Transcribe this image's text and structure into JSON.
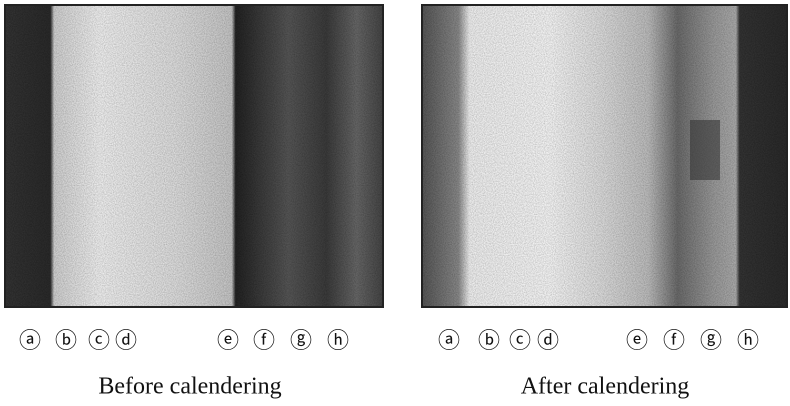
{
  "panels": [
    {
      "labels": [
        "ⓐ",
        "ⓑ",
        "ⓒ",
        "ⓓ",
        "ⓔ",
        "ⓕ",
        "ⓖ",
        "ⓗ"
      ],
      "caption": "Before calendering"
    },
    {
      "labels": [
        "ⓐ",
        "ⓑ",
        "ⓒ",
        "ⓓ",
        "ⓔ",
        "ⓕ",
        "ⓖ",
        "ⓗ"
      ],
      "caption": "After calendering"
    }
  ]
}
